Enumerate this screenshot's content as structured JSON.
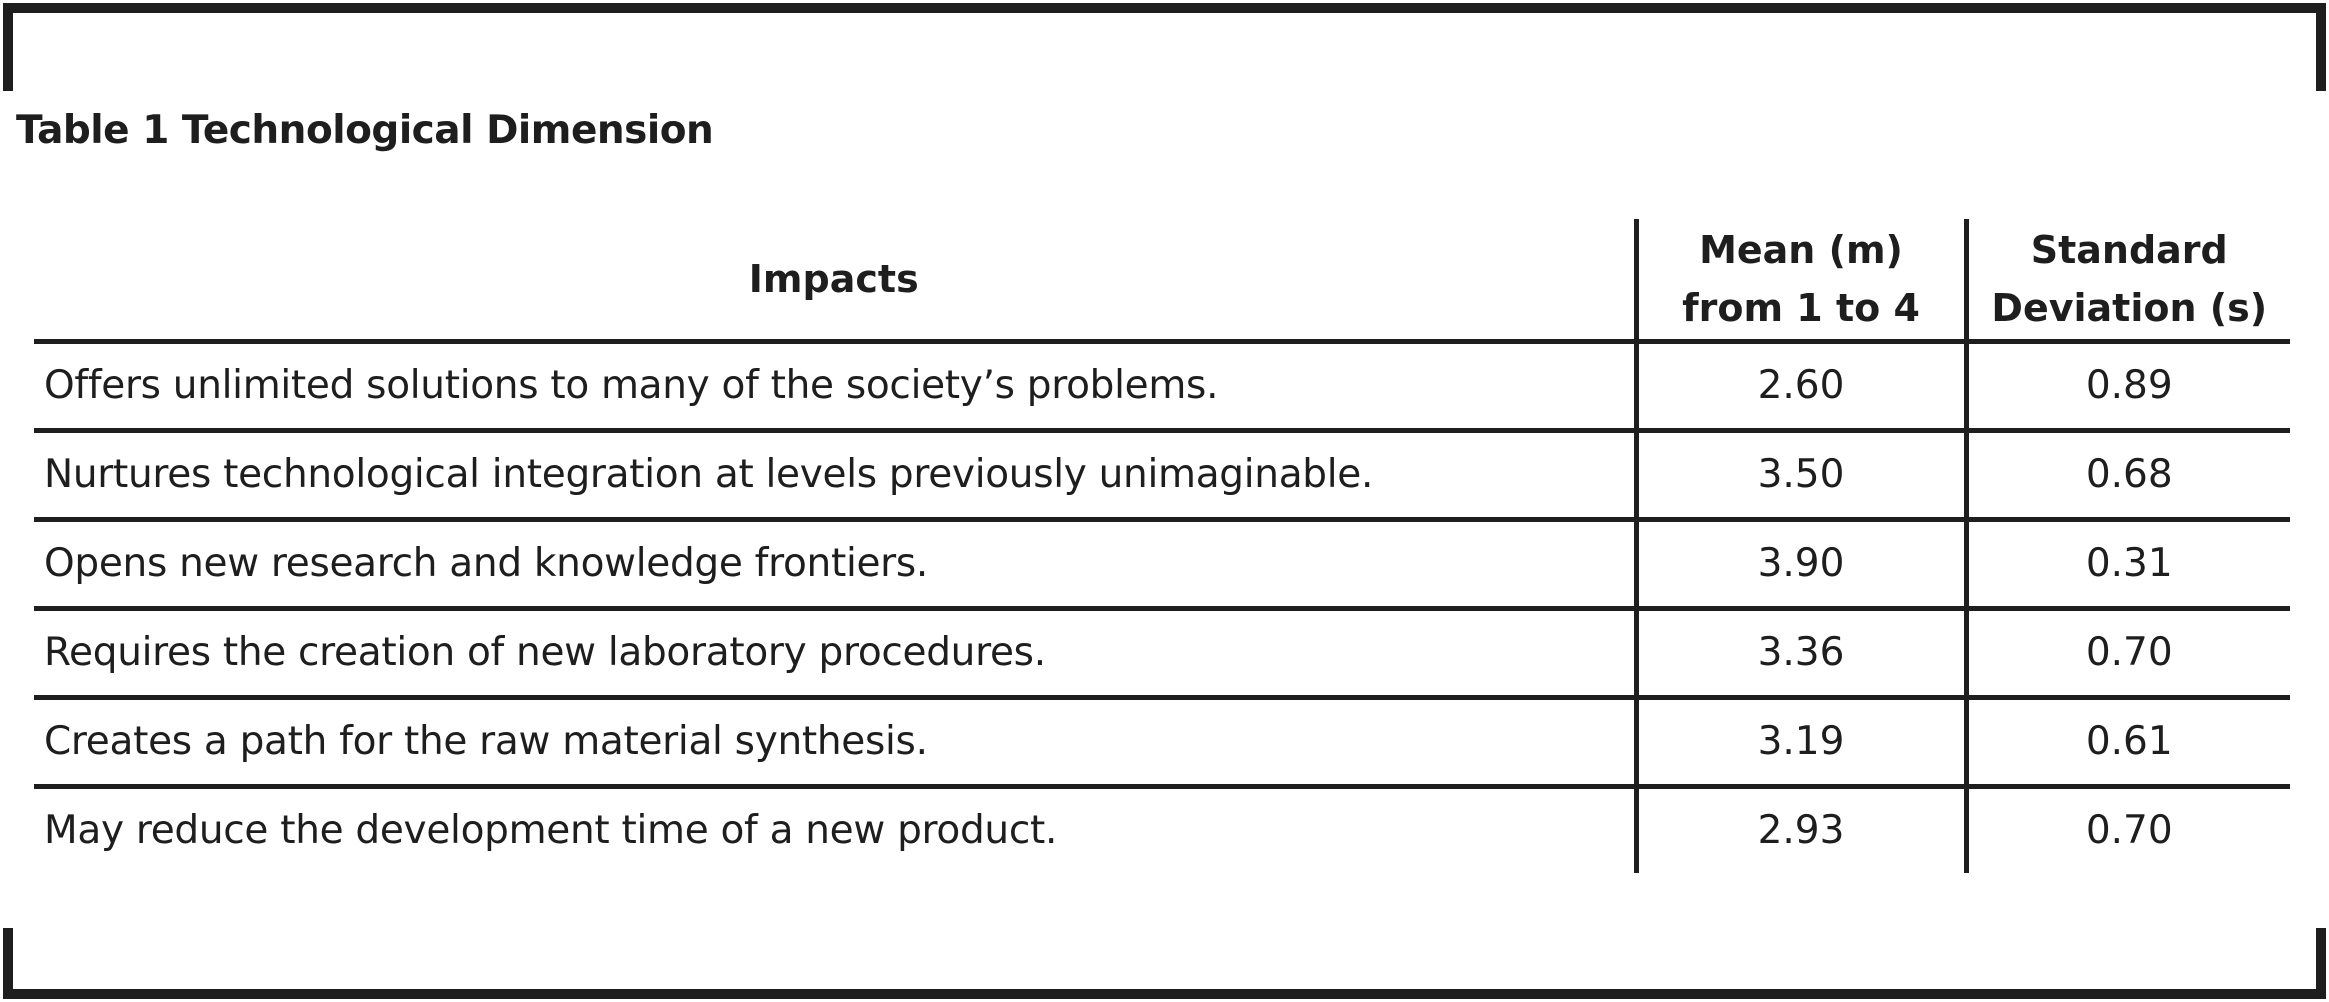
{
  "caption": "Table 1 Technological Dimension",
  "columns": {
    "impacts": "Impacts",
    "mean_line1": "Mean (m)",
    "mean_line2": "from 1 to 4",
    "sd_line1": "Standard",
    "sd_line2": "Deviation (s)"
  },
  "rows": [
    {
      "impact": "Offers unlimited solutions to many of the society’s problems.",
      "mean": "2.60",
      "sd": "0.89"
    },
    {
      "impact": "Nurtures technological integration at levels previously unimaginable.",
      "mean": "3.50",
      "sd": "0.68"
    },
    {
      "impact": "Opens new research and knowledge frontiers.",
      "mean": "3.90",
      "sd": "0.31"
    },
    {
      "impact": "Requires the creation of new laboratory procedures.",
      "mean": "3.36",
      "sd": "0.70"
    },
    {
      "impact": "Creates a path for the raw material synthesis.",
      "mean": "3.19",
      "sd": "0.61"
    },
    {
      "impact": "May reduce the development time of a new product.",
      "mean": "2.93",
      "sd": "0.70"
    }
  ]
}
